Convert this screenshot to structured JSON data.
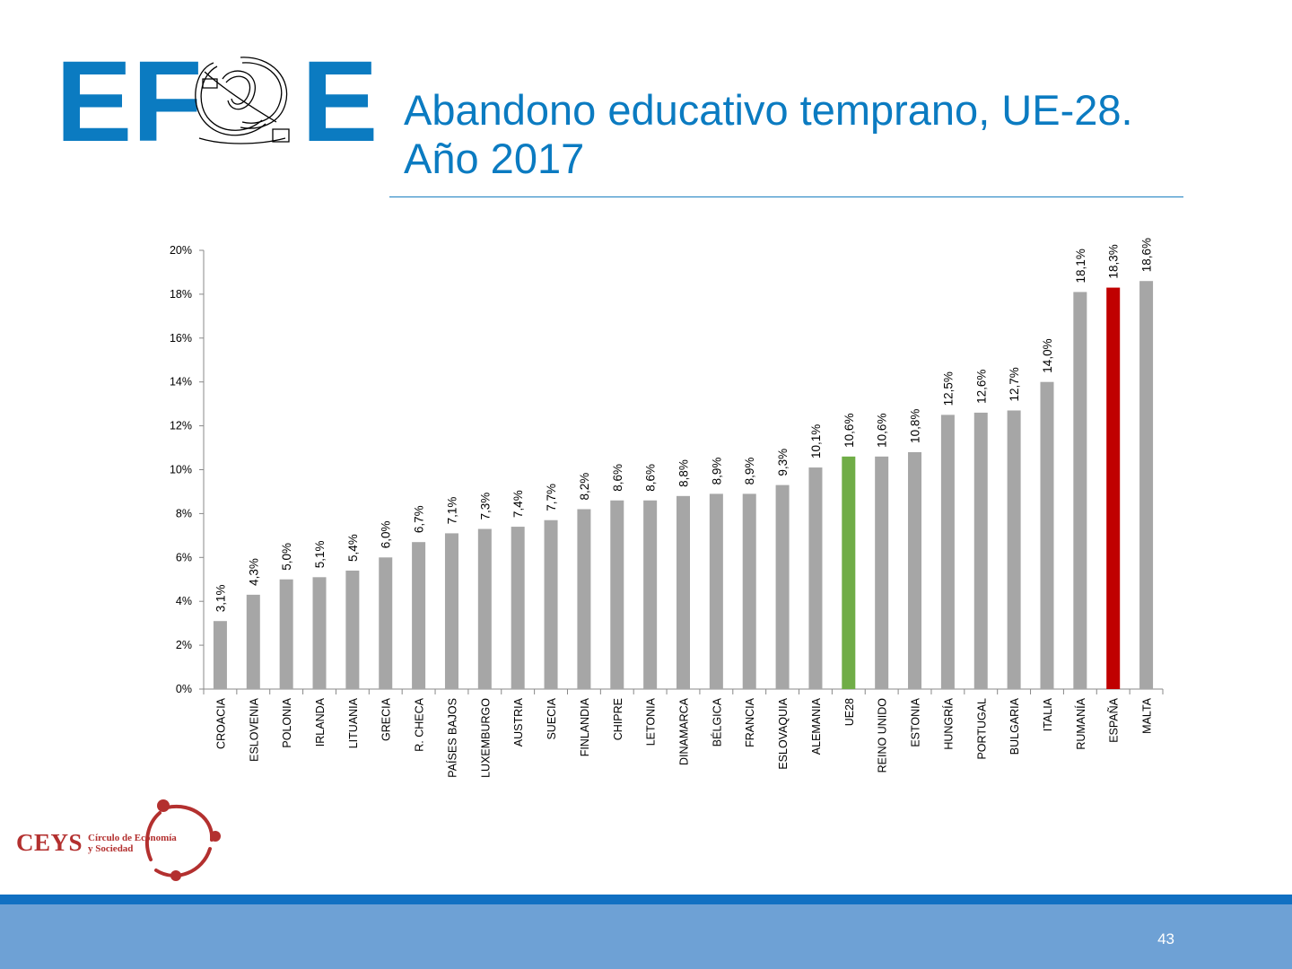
{
  "header": {
    "logo": {
      "letters_left": "EF",
      "letters_right": "E"
    },
    "title_line1": "Abandono educativo temprano, UE-28.",
    "title_line2": "Año 2017"
  },
  "footer_logo": {
    "main": "CEYS",
    "sub_line1": "Círculo de Economía",
    "sub_line2": "y Sociedad"
  },
  "page_number": "43",
  "colors": {
    "brand_blue": "#0b7bc1",
    "bar_default": "#a6a6a6",
    "bar_eu": "#70ad47",
    "bar_spain": "#c00000",
    "footer_band": "#6ea1d5",
    "footer_stripe": "#1170c2"
  },
  "chart_data": {
    "type": "bar",
    "categories": [
      "CROACIA",
      "ESLOVENIA",
      "POLONIA",
      "IRLANDA",
      "LITUANIA",
      "GRECIA",
      "R. CHECA",
      "PAÍSES BAJOS",
      "LUXEMBURGO",
      "AUSTRIA",
      "SUECIA",
      "FINLANDIA",
      "CHIPRE",
      "LETONIA",
      "DINAMARCA",
      "BÉLGICA",
      "FRANCIA",
      "ESLOVAQUIA",
      "ALEMANIA",
      "UE28",
      "REINO UNIDO",
      "ESTONIA",
      "HUNGRÍA",
      "PORTUGAL",
      "BULGARIA",
      "ITALIA",
      "RUMANÍA",
      "ESPAÑA",
      "MALTA"
    ],
    "values": [
      3.1,
      4.3,
      5.0,
      5.1,
      5.4,
      6.0,
      6.7,
      7.1,
      7.3,
      7.4,
      7.7,
      8.2,
      8.6,
      8.6,
      8.8,
      8.9,
      8.9,
      9.3,
      10.1,
      10.6,
      10.6,
      10.8,
      12.5,
      12.6,
      12.7,
      14.0,
      18.1,
      18.3,
      18.6
    ],
    "data_labels": [
      "3,1%",
      "4,3%",
      "5,0%",
      "5,1%",
      "5,4%",
      "6,0%",
      "6,7%",
      "7,1%",
      "7,3%",
      "7,4%",
      "7,7%",
      "8,2%",
      "8,6%",
      "8,6%",
      "8,8%",
      "8,9%",
      "8,9%",
      "9,3%",
      "10,1%",
      "10,6%",
      "10,6%",
      "10,8%",
      "12,5%",
      "12,6%",
      "12,7%",
      "14,0%",
      "18,1%",
      "18,3%",
      "18,6%"
    ],
    "highlight": {
      "UE28": "#70ad47",
      "ESPAÑA": "#c00000"
    },
    "ylim": [
      0,
      20
    ],
    "yticks": [
      0,
      2,
      4,
      6,
      8,
      10,
      12,
      14,
      16,
      18,
      20
    ],
    "ytick_labels": [
      "0%",
      "2%",
      "4%",
      "6%",
      "8%",
      "10%",
      "12%",
      "14%",
      "16%",
      "18%",
      "20%"
    ],
    "grid": false,
    "legend": "none"
  }
}
